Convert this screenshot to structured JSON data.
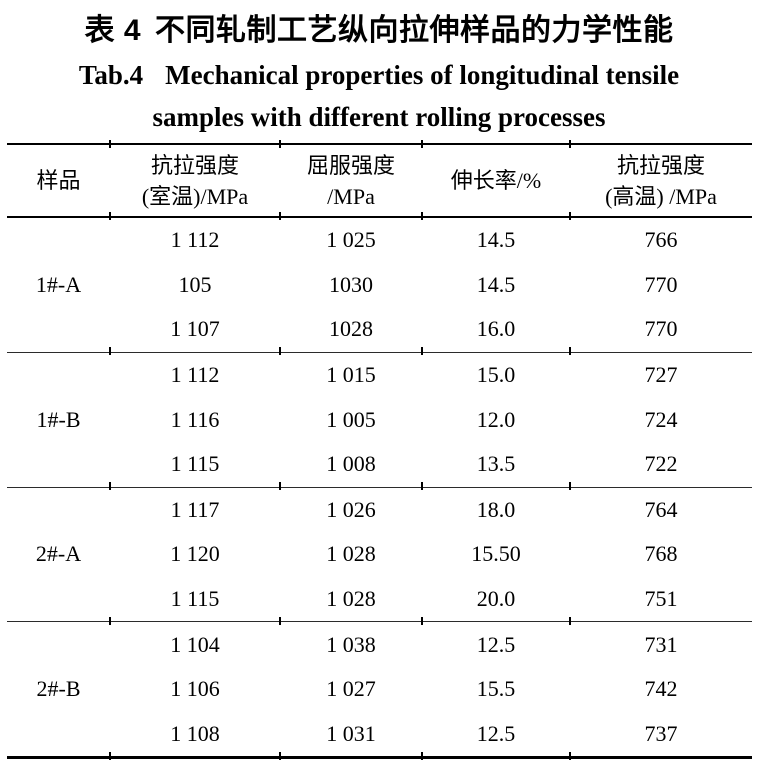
{
  "caption": {
    "chinese_label": "表 4",
    "chinese_title": "不同轧制工艺纵向拉伸样品的力学性能",
    "english_label": "Tab.4",
    "english_title_line1": "Mechanical properties of longitudinal tensile",
    "english_title_line2": "samples with different rolling processes"
  },
  "table": {
    "columns": [
      {
        "title": "样品",
        "subtitle": ""
      },
      {
        "title": "抗拉强度",
        "subtitle": "(室温)/MPa"
      },
      {
        "title": "屈服强度",
        "subtitle": "/MPa"
      },
      {
        "title": "伸长率/%",
        "subtitle": ""
      },
      {
        "title": "抗拉强度",
        "subtitle": "(高温) /MPa"
      }
    ],
    "groups": [
      {
        "sample": "1#-A",
        "rows": [
          [
            "1 112",
            "1 025",
            "14.5",
            "766"
          ],
          [
            "105",
            "1030",
            "14.5",
            "770"
          ],
          [
            "1 107",
            "1028",
            "16.0",
            "770"
          ]
        ]
      },
      {
        "sample": "1#-B",
        "rows": [
          [
            "1 112",
            "1 015",
            "15.0",
            "727"
          ],
          [
            "1 116",
            "1 005",
            "12.0",
            "724"
          ],
          [
            "1 115",
            "1 008",
            "13.5",
            "722"
          ]
        ]
      },
      {
        "sample": "2#-A",
        "rows": [
          [
            "1 117",
            "1 026",
            "18.0",
            "764"
          ],
          [
            "1 120",
            "1 028",
            "15.50",
            "768"
          ],
          [
            "1 115",
            "1 028",
            "20.0",
            "751"
          ]
        ]
      },
      {
        "sample": "2#-B",
        "rows": [
          [
            "1 104",
            "1 038",
            "12.5",
            "731"
          ],
          [
            "1 106",
            "1 027",
            "15.5",
            "742"
          ],
          [
            "1 108",
            "1 031",
            "12.5",
            "737"
          ]
        ]
      }
    ]
  },
  "colors": {
    "background": "#ffffff",
    "text": "#000000",
    "thick_rule": "#000000",
    "thin_rule": "#2b2b2b"
  }
}
